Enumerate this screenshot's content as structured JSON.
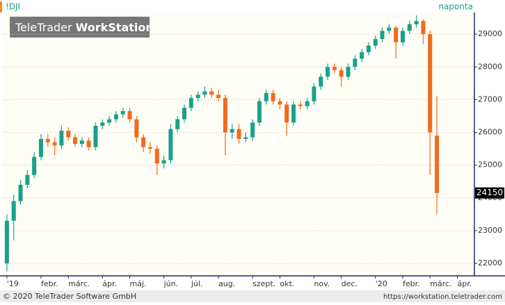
{
  "header": {
    "symbol": "!DJI",
    "interval": "naponta",
    "logo_light": "TeleTrader",
    "logo_bold": "WorkStation"
  },
  "footer": {
    "copyright": "© 2020 TeleTrader Software GmbH",
    "url": "https://workstation.teletrader.com"
  },
  "chart_data": {
    "type": "candlestick",
    "up_color": "#1aa08a",
    "down_color": "#f26a1c",
    "grid": true,
    "ylim": [
      21620,
      29660
    ],
    "yticks": [
      22000,
      23000,
      24000,
      25000,
      26000,
      27000,
      28000,
      29000
    ],
    "categories": [
      "'19",
      null,
      null,
      null,
      null,
      "febr.",
      null,
      null,
      null,
      "márc.",
      null,
      null,
      null,
      null,
      "ápr.",
      null,
      null,
      null,
      "máj.",
      null,
      null,
      null,
      null,
      "jún.",
      null,
      null,
      null,
      "júl.",
      null,
      null,
      null,
      "aug.",
      null,
      null,
      null,
      null,
      "szept.",
      null,
      null,
      null,
      "okt.",
      null,
      null,
      null,
      null,
      "nov.",
      null,
      null,
      null,
      "dec.",
      null,
      null,
      null,
      null,
      "'20",
      null,
      null,
      null,
      "febr.",
      null,
      null,
      null,
      "márc.",
      null,
      null,
      null,
      "ápr.",
      null,
      null
    ],
    "series": [
      {
        "name": "!DJI",
        "open": [
          22000,
          23300,
          23900,
          24400,
          24700,
          25250,
          25800,
          25700,
          25600,
          26050,
          25850,
          25650,
          25750,
          25550,
          26200,
          26300,
          26400,
          26550,
          26650,
          26400,
          25850,
          25550,
          25500,
          25050,
          25150,
          26100,
          26400,
          26750,
          27050,
          27150,
          27250,
          27150,
          27050,
          26000,
          26100,
          25800,
          25850,
          26300,
          26950,
          27200,
          26950,
          26850,
          26300,
          26850,
          26800,
          26950,
          27400,
          27700,
          28000,
          27900,
          27700,
          28000,
          28250,
          28450,
          28650,
          28850,
          29100,
          29200,
          28750,
          29100,
          29300,
          29400,
          29000,
          25900,
          null,
          null,
          null,
          null,
          null
        ],
        "high": [
          23500,
          24100,
          24550,
          24850,
          25400,
          25950,
          25950,
          25850,
          26200,
          26150,
          25950,
          25850,
          25850,
          26300,
          26400,
          26500,
          26650,
          26750,
          26750,
          26500,
          25950,
          25700,
          25600,
          25300,
          26250,
          26500,
          26850,
          27150,
          27250,
          27400,
          27350,
          27300,
          27150,
          26250,
          26250,
          26000,
          26400,
          27050,
          27300,
          27300,
          27050,
          26950,
          26950,
          26950,
          27050,
          27500,
          27800,
          28100,
          28100,
          28000,
          28100,
          28350,
          28550,
          28750,
          28950,
          29200,
          29300,
          29250,
          29200,
          29400,
          29570,
          29450,
          29100,
          27100,
          null,
          null,
          null,
          null,
          null
        ],
        "low": [
          21750,
          22700,
          23800,
          24300,
          24600,
          25150,
          25550,
          25300,
          25500,
          25750,
          25550,
          25550,
          25450,
          25450,
          26100,
          26200,
          26300,
          26450,
          26300,
          25700,
          25400,
          25350,
          24700,
          24900,
          25050,
          26000,
          26300,
          26650,
          26950,
          27050,
          27050,
          26950,
          25300,
          25800,
          25650,
          25700,
          25750,
          26200,
          26850,
          26850,
          26700,
          25900,
          26200,
          26700,
          26700,
          26850,
          27300,
          27600,
          27800,
          27400,
          27600,
          27900,
          28150,
          28350,
          28550,
          28750,
          29000,
          28250,
          28650,
          29000,
          29200,
          28700,
          24700,
          23500,
          null,
          null,
          null,
          null,
          null
        ],
        "close": [
          23300,
          23900,
          24400,
          24700,
          25250,
          25800,
          25700,
          25600,
          26050,
          25850,
          25650,
          25750,
          25550,
          26200,
          26300,
          26400,
          26550,
          26650,
          26400,
          25850,
          25550,
          25500,
          25050,
          25150,
          26100,
          26400,
          26750,
          27050,
          27150,
          27250,
          27150,
          27050,
          26000,
          26100,
          25800,
          25850,
          26300,
          26950,
          27200,
          26950,
          26850,
          26300,
          26850,
          26800,
          26950,
          27400,
          27700,
          28000,
          27900,
          27700,
          28000,
          28250,
          28450,
          28650,
          28850,
          29100,
          29200,
          28750,
          29100,
          29300,
          29400,
          29000,
          26000,
          24150,
          null,
          null,
          null,
          null,
          null
        ]
      }
    ]
  }
}
